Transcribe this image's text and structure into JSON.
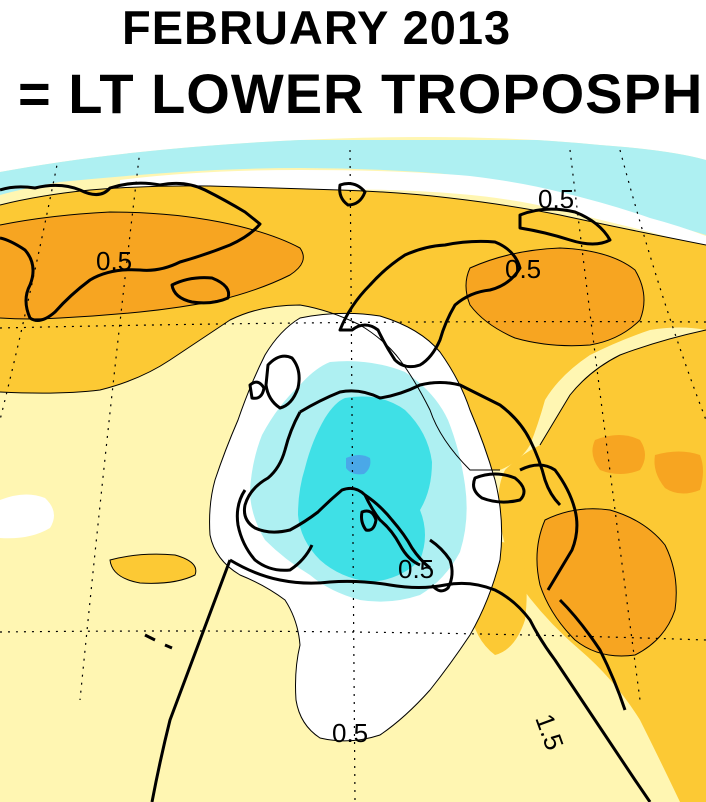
{
  "header": {
    "title_line1": "FEBRUARY 2013",
    "title_line2": "= LT LOWER TROPOSPHE"
  },
  "map": {
    "projection": "polar orthographic (cropped, Europe / North Atlantic)",
    "variable": "lower troposphere temperature anomaly",
    "contour_labels": [
      {
        "id": "greenland",
        "text": "0.5"
      },
      {
        "id": "arctic",
        "text": "0.5"
      },
      {
        "id": "russia",
        "text": "0.5"
      },
      {
        "id": "mediterranean",
        "text": "0.5"
      },
      {
        "id": "africa",
        "text": "0.5"
      },
      {
        "id": "middle-east",
        "text": "1.5"
      }
    ],
    "colors": {
      "anomaly_neg_strong": "#4aa8e8",
      "anomaly_neg_mid": "#3fe0e6",
      "anomaly_neg_weak": "#aef0f2",
      "anomaly_neutral": "#ffffff",
      "anomaly_pos_weak": "#fff6b2",
      "anomaly_pos_mid": "#fcc934",
      "anomaly_pos_strong": "#f7a521",
      "coastline": "#000000",
      "gridline": "#000000"
    }
  }
}
